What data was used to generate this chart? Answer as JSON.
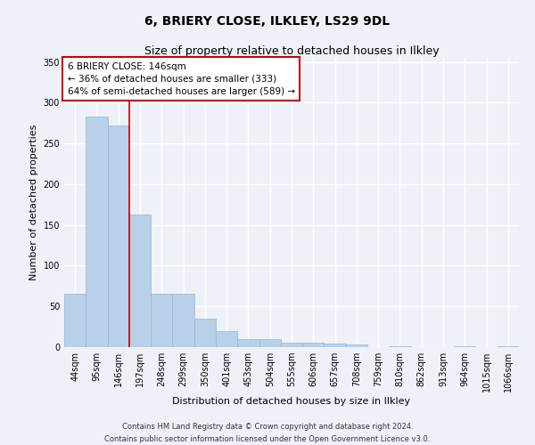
{
  "title": "6, BRIERY CLOSE, ILKLEY, LS29 9DL",
  "subtitle": "Size of property relative to detached houses in Ilkley",
  "xlabel": "Distribution of detached houses by size in Ilkley",
  "ylabel": "Number of detached properties",
  "footer_line1": "Contains HM Land Registry data © Crown copyright and database right 2024.",
  "footer_line2": "Contains public sector information licensed under the Open Government Licence v3.0.",
  "categories": [
    "44sqm",
    "95sqm",
    "146sqm",
    "197sqm",
    "248sqm",
    "299sqm",
    "350sqm",
    "401sqm",
    "453sqm",
    "504sqm",
    "555sqm",
    "606sqm",
    "657sqm",
    "708sqm",
    "759sqm",
    "810sqm",
    "862sqm",
    "913sqm",
    "964sqm",
    "1015sqm",
    "1066sqm"
  ],
  "values": [
    65,
    283,
    272,
    163,
    65,
    65,
    35,
    20,
    10,
    10,
    5,
    5,
    4,
    3,
    0,
    1,
    0,
    0,
    1,
    0,
    1
  ],
  "bar_color": "#b8d0e8",
  "bar_edge_color": "#90b8d8",
  "property_line_x": 2.5,
  "property_line_color": "#cc0000",
  "annotation_text": "6 BRIERY CLOSE: 146sqm\n← 36% of detached houses are smaller (333)\n64% of semi-detached houses are larger (589) →",
  "annotation_box_edgecolor": "#cc0000",
  "background_color": "#eef2f8",
  "ylim_max": 355,
  "yticks": [
    0,
    50,
    100,
    150,
    200,
    250,
    300,
    350
  ],
  "grid_color": "#ffffff",
  "title_fontsize": 10,
  "subtitle_fontsize": 9,
  "tick_fontsize": 7,
  "ylabel_fontsize": 8,
  "xlabel_fontsize": 8,
  "footer_fontsize": 6,
  "annotation_fontsize": 7.5
}
